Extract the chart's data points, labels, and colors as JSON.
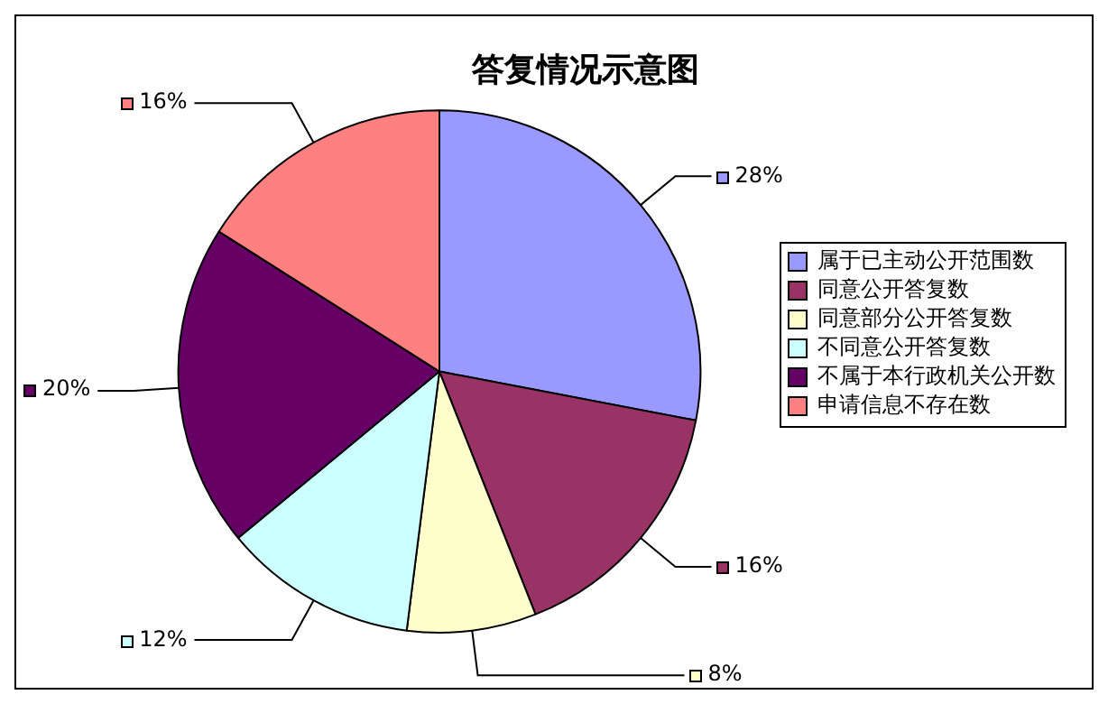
{
  "chart_data": {
    "type": "pie",
    "title": "答复情况示意图",
    "categories": [
      "属于已主动公开范围数",
      "同意公开答复数",
      "同意部分公开答复数",
      "不同意公开答复数",
      "不属于本行政机关公开数",
      "申请信息不存在数"
    ],
    "values": [
      28,
      16,
      8,
      12,
      20,
      16
    ],
    "colors": [
      "#9999ff",
      "#993366",
      "#ffffcc",
      "#ccffff",
      "#660066",
      "#ff8080"
    ],
    "value_labels": [
      "28%",
      "16%",
      "8%",
      "12%",
      "20%",
      "16%"
    ],
    "legend": "right"
  }
}
